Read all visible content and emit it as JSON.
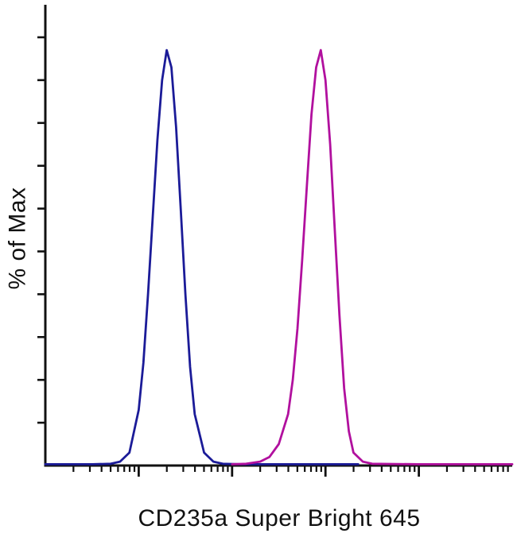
{
  "chart_data": {
    "type": "line",
    "subtype": "flow-cytometry-histogram-overlay",
    "title": "",
    "xlabel": "CD235a Super Bright 645",
    "ylabel": "% of Max",
    "x_scale": "log",
    "x_decades": [
      0,
      5
    ],
    "ylim": [
      0,
      105
    ],
    "grid": false,
    "legend": "none",
    "axis_color": "#111111",
    "background_color": "#ffffff",
    "y_ticks": {
      "start": 10,
      "end": 100,
      "step": 10
    },
    "series": [
      {
        "name": "blue-peak",
        "color": "#1b1b98",
        "peak_x_decade": 1.3,
        "peak_height_pct": 97,
        "points": [
          [
            0.0,
            0.3
          ],
          [
            0.5,
            0.3
          ],
          [
            0.7,
            0.4
          ],
          [
            0.8,
            0.9
          ],
          [
            0.9,
            3
          ],
          [
            1.0,
            13
          ],
          [
            1.05,
            24
          ],
          [
            1.1,
            40
          ],
          [
            1.15,
            58
          ],
          [
            1.2,
            76
          ],
          [
            1.25,
            90
          ],
          [
            1.3,
            97
          ],
          [
            1.35,
            93
          ],
          [
            1.4,
            79
          ],
          [
            1.45,
            60
          ],
          [
            1.5,
            40
          ],
          [
            1.55,
            23
          ],
          [
            1.6,
            12
          ],
          [
            1.7,
            3
          ],
          [
            1.8,
            0.9
          ],
          [
            1.9,
            0.4
          ],
          [
            2.1,
            0.3
          ],
          [
            2.8,
            0.3
          ],
          [
            3.35,
            0.3
          ]
        ]
      },
      {
        "name": "magenta-peak",
        "color": "#b1109e",
        "peak_x_decade": 2.95,
        "peak_height_pct": 97,
        "points": [
          [
            2.0,
            0.3
          ],
          [
            2.15,
            0.4
          ],
          [
            2.3,
            0.9
          ],
          [
            2.4,
            2
          ],
          [
            2.5,
            5
          ],
          [
            2.6,
            12
          ],
          [
            2.65,
            20
          ],
          [
            2.7,
            32
          ],
          [
            2.75,
            48
          ],
          [
            2.8,
            65
          ],
          [
            2.85,
            82
          ],
          [
            2.9,
            93
          ],
          [
            2.95,
            97
          ],
          [
            3.0,
            90
          ],
          [
            3.05,
            75
          ],
          [
            3.1,
            55
          ],
          [
            3.15,
            35
          ],
          [
            3.2,
            18
          ],
          [
            3.25,
            8
          ],
          [
            3.3,
            3
          ],
          [
            3.4,
            0.9
          ],
          [
            3.5,
            0.4
          ],
          [
            4.0,
            0.3
          ],
          [
            5.0,
            0.3
          ]
        ]
      }
    ]
  }
}
